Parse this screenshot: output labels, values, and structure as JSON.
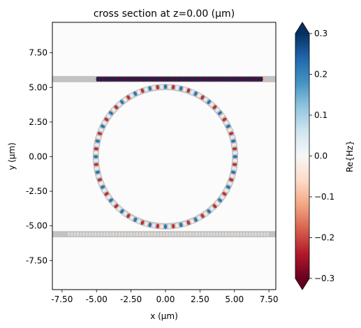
{
  "chart_data": {
    "type": "heatmap",
    "title": "cross section at z=0.00 (μm)",
    "xlabel": "x (μm)",
    "ylabel": "y (μm)",
    "xlim": [
      -8.2,
      8.0
    ],
    "ylim": [
      -9.6,
      9.7
    ],
    "x_ticks": [
      -7.5,
      -5.0,
      -2.5,
      0.0,
      2.5,
      5.0,
      7.5
    ],
    "x_tick_labels": [
      "-7.50",
      "-5.00",
      "-2.50",
      "0.00",
      "2.50",
      "5.00",
      "7.50"
    ],
    "y_ticks": [
      7.5,
      5.0,
      2.5,
      0.0,
      -2.5,
      -5.0,
      -7.5
    ],
    "y_tick_labels": [
      "7.50",
      "5.00",
      "2.50",
      "0.00",
      "-2.50",
      "-5.00",
      "-7.50"
    ],
    "colorbar": {
      "label": "Re{Hz}",
      "range": [
        -0.3,
        0.3
      ],
      "ticks": [
        0.3,
        0.2,
        0.1,
        0.0,
        -0.1,
        -0.2,
        -0.3
      ],
      "tick_labels": [
        "0.3",
        "0.2",
        "0.1",
        "0.0",
        "−0.1",
        "−0.2",
        "−0.3"
      ],
      "colormap": "RdBu",
      "extend": "both"
    },
    "structures": {
      "ring": {
        "center": [
          0,
          0
        ],
        "radius": 5.05,
        "width": 0.45
      },
      "waveguides": [
        {
          "y": 5.6,
          "x_start": -8.2,
          "x_end": 8.0,
          "width": 0.45
        },
        {
          "y": -5.6,
          "x_start": -8.2,
          "x_end": 8.0,
          "width": 0.45
        }
      ],
      "structure_color": "#c2c2c2"
    },
    "fields": {
      "top_waveguide": {
        "x_start": -4.95,
        "x_end": 7.0,
        "period": 0.215,
        "amplitude": 0.3
      },
      "ring": {
        "lobes": 112,
        "amplitude": 0.22
      },
      "bottom_waveguide": {
        "x_start": -7.0,
        "x_end": 7.5,
        "amplitude": 0.06
      }
    }
  }
}
